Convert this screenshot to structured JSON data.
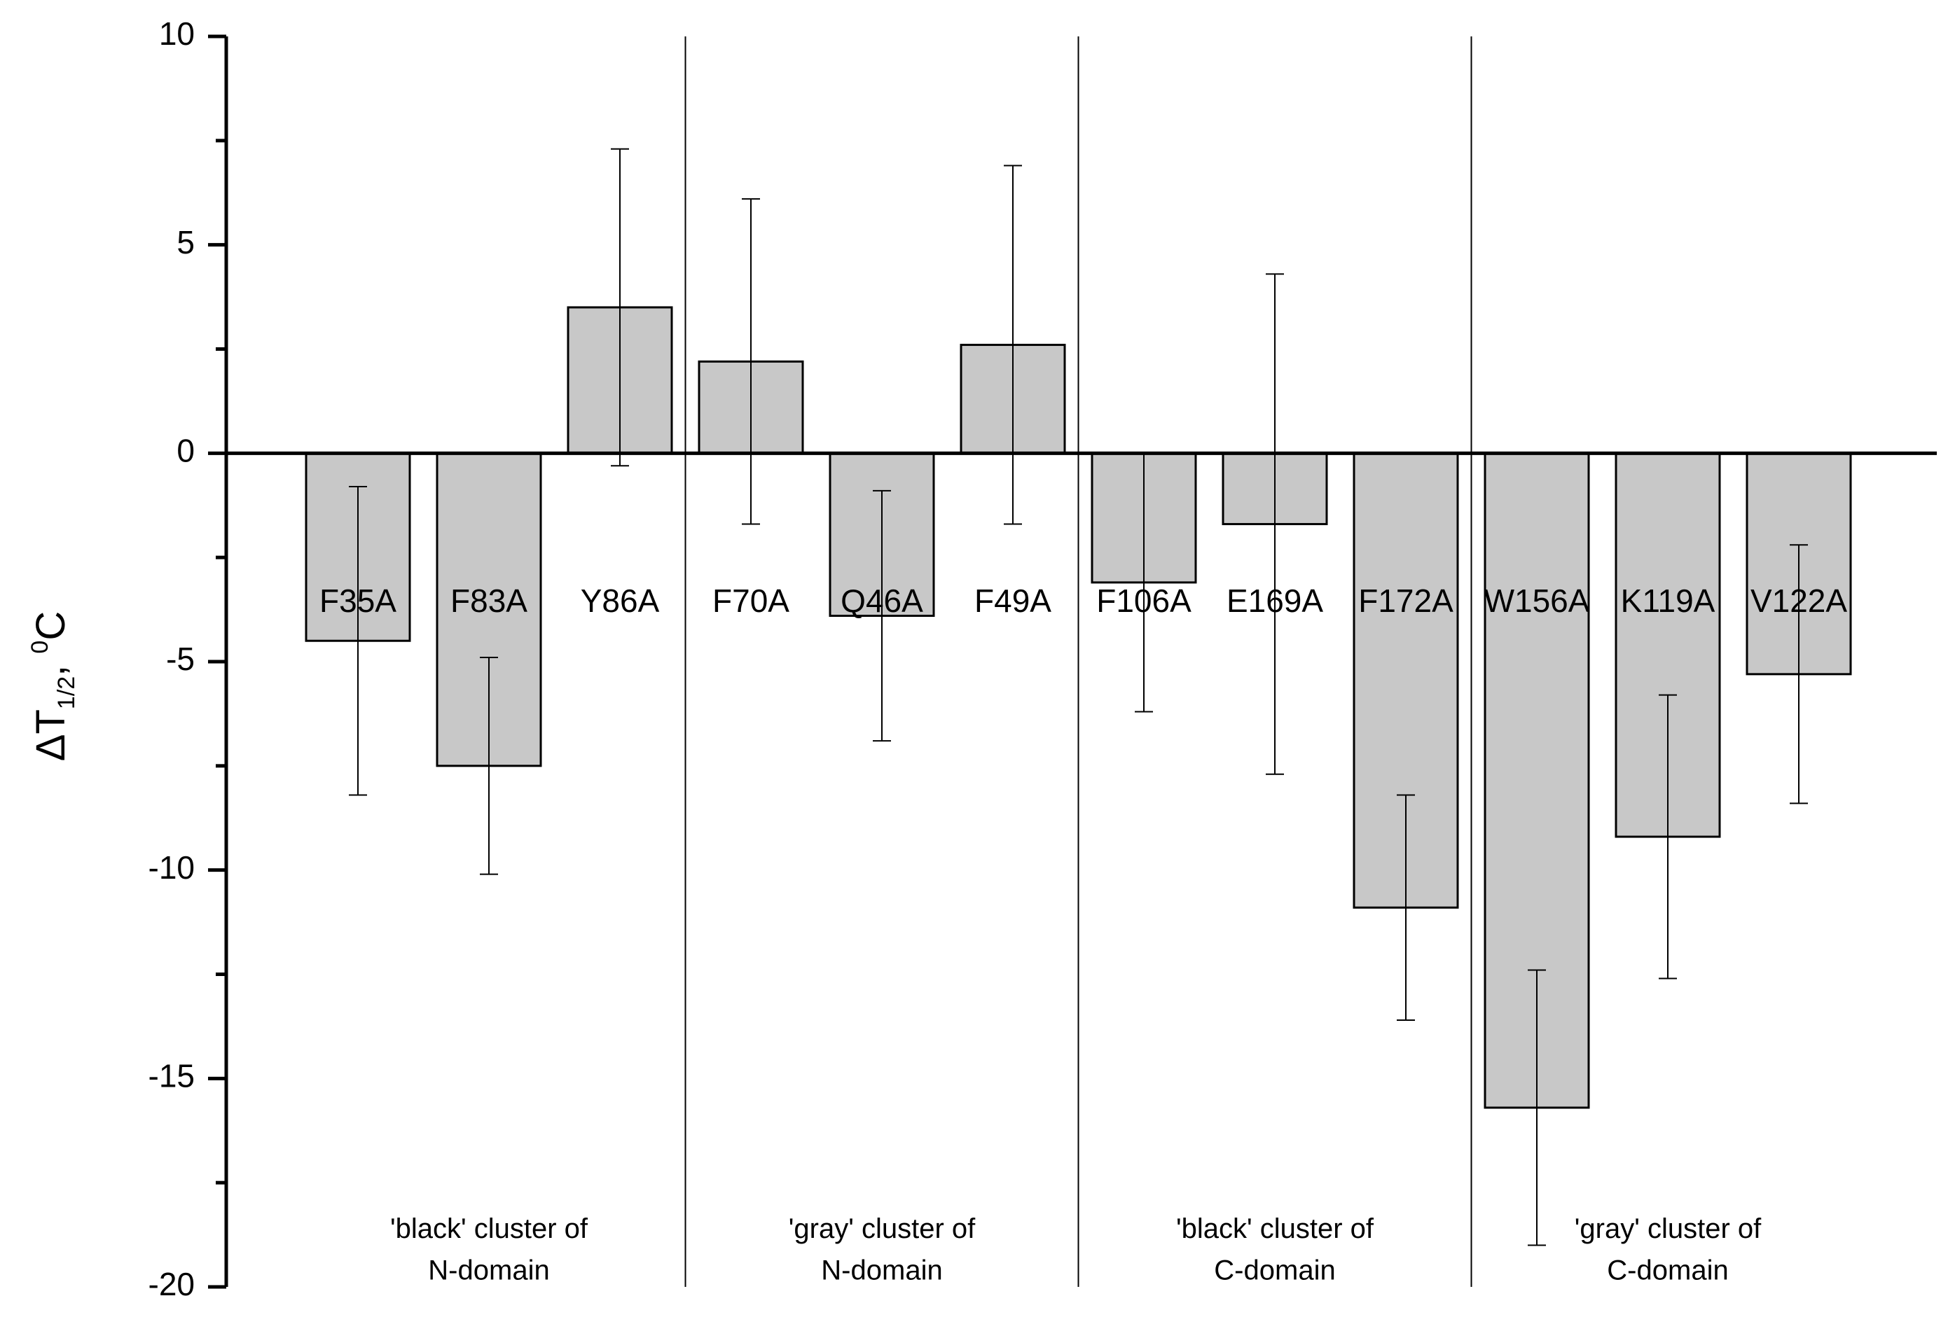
{
  "chart_data": {
    "type": "bar",
    "title": "",
    "xlabel": "",
    "ylabel": {
      "main": "ΔT",
      "subscript": "1/2",
      "separator": ", ",
      "superscript": "0",
      "unit": "C"
    },
    "ylim": [
      -20,
      10
    ],
    "yticks": [
      10,
      5,
      0,
      -5,
      -10,
      -15,
      -20
    ],
    "ytick_labels": [
      "10",
      "5",
      "0",
      "-5",
      "-10",
      "-15",
      "-20"
    ],
    "categories": [
      "F35A",
      "F83A",
      "Y86A",
      "F70A",
      "Q46A",
      "F49A",
      "F106A",
      "E169A",
      "F172A",
      "W156A",
      "K119A",
      "V122A"
    ],
    "values": [
      -4.5,
      -7.5,
      3.5,
      2.2,
      -3.9,
      2.6,
      -3.1,
      -1.7,
      -10.9,
      -15.7,
      -9.2,
      -5.3
    ],
    "errors": [
      3.7,
      2.6,
      3.8,
      3.9,
      3.0,
      4.3,
      3.1,
      6.0,
      2.7,
      3.3,
      3.4,
      3.1
    ],
    "groups": [
      {
        "line1": "'black' cluster of",
        "line2": "N-domain",
        "members": [
          "F35A",
          "F83A",
          "Y86A"
        ]
      },
      {
        "line1": "'gray' cluster of",
        "line2": "N-domain",
        "members": [
          "F70A",
          "Q46A",
          "F49A"
        ]
      },
      {
        "line1": "'black' cluster of",
        "line2": "C-domain",
        "members": [
          "F106A",
          "E169A",
          "F172A"
        ]
      },
      {
        "line1": "'gray' cluster of",
        "line2": "C-domain",
        "members": [
          "W156A",
          "K119A",
          "V122A"
        ]
      }
    ],
    "colors": {
      "bar_fill": "#c8c8c8",
      "bar_stroke": "#000000",
      "axis": "#000000"
    },
    "grid": false,
    "legend": "none"
  }
}
